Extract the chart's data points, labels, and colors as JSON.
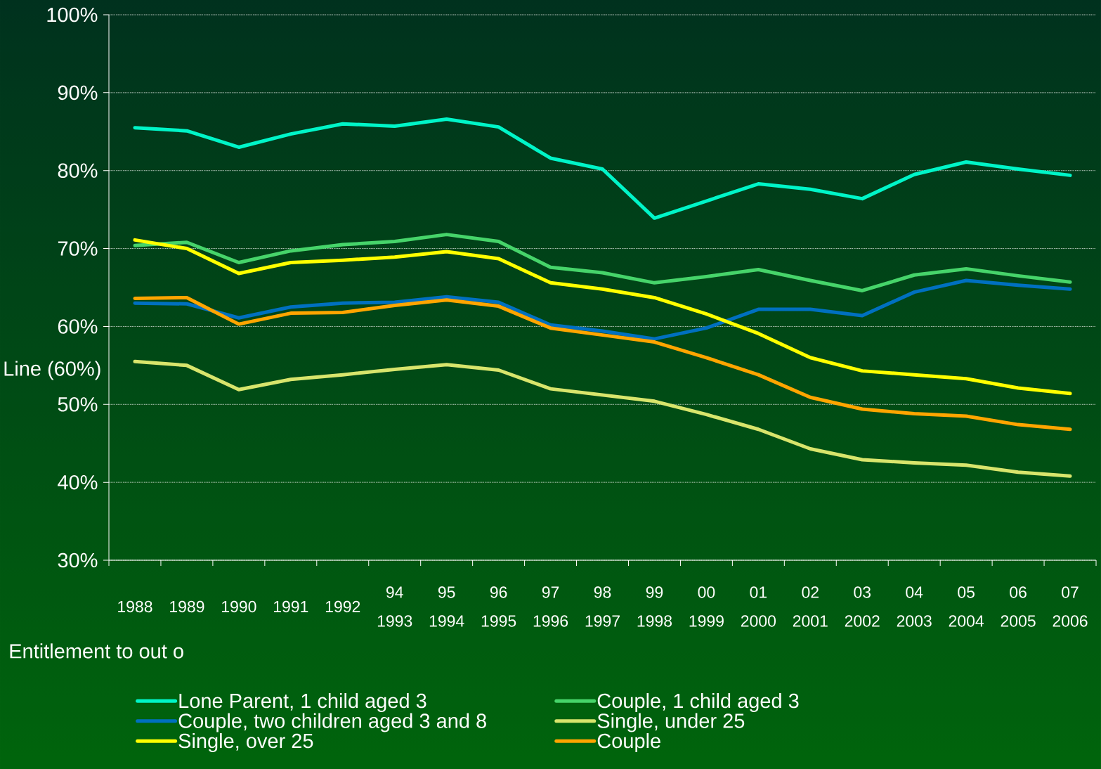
{
  "chart_data": {
    "type": "line",
    "ylabel": "Line (60%)",
    "annotations": [
      "Entitlement to out o"
    ],
    "categories": [
      "1988",
      "1989",
      "1990",
      "1991",
      "1992",
      "94 1993",
      "95 1994",
      "96 1995",
      "97 1996",
      "98 1997",
      "99 1998",
      "00 1999",
      "01 2000",
      "02 2001",
      "03 2002",
      "04 2003",
      "05 2004",
      "06 2005",
      "07 2006"
    ],
    "series": [
      {
        "name": "Lone Parent, 1 child aged 3",
        "color": "#00f5c8",
        "values": [
          85.5,
          85.1,
          83.0,
          84.7,
          86.0,
          85.7,
          86.6,
          85.6,
          81.6,
          80.2,
          73.9,
          76.1,
          78.3,
          77.6,
          76.4,
          79.5,
          81.1,
          80.2,
          79.4
        ]
      },
      {
        "name": "Couple, 1 child aged 3",
        "color": "#46d46a",
        "values": [
          70.4,
          70.8,
          68.2,
          69.7,
          70.5,
          70.9,
          71.8,
          70.9,
          67.6,
          66.9,
          65.6,
          66.4,
          67.3,
          65.9,
          64.6,
          66.6,
          67.4,
          66.5,
          65.7
        ]
      },
      {
        "name": "Couple, two children aged 3 and 8",
        "color": "#0070c0",
        "values": [
          63.0,
          62.9,
          61.1,
          62.5,
          63.0,
          63.1,
          63.8,
          63.1,
          60.2,
          59.4,
          58.4,
          59.8,
          62.2,
          62.2,
          61.4,
          64.4,
          65.9,
          65.3,
          64.8
        ]
      },
      {
        "name": "Single, under 25",
        "color": "#d8e56c",
        "values": [
          55.5,
          55.0,
          51.9,
          53.2,
          53.8,
          54.5,
          55.1,
          54.4,
          52.0,
          51.2,
          50.4,
          48.7,
          46.8,
          44.3,
          42.9,
          42.5,
          42.2,
          41.3,
          40.8
        ]
      },
      {
        "name": "Single, over 25",
        "color": "#ffff00",
        "values": [
          71.1,
          70.0,
          66.8,
          68.2,
          68.5,
          68.9,
          69.6,
          68.7,
          65.6,
          64.8,
          63.7,
          61.6,
          59.1,
          56.0,
          54.3,
          53.8,
          53.3,
          52.1,
          51.4
        ]
      },
      {
        "name": "Couple",
        "color": "#ffa500",
        "values": [
          63.6,
          63.7,
          60.3,
          61.7,
          61.8,
          62.7,
          63.4,
          62.6,
          59.8,
          58.9,
          58.0,
          56.0,
          53.8,
          50.9,
          49.4,
          48.8,
          48.5,
          47.4,
          46.8
        ]
      }
    ],
    "ylim": [
      30,
      100
    ],
    "yticks": [
      {
        "value": 30,
        "label": "30%"
      },
      {
        "value": 40,
        "label": "40%"
      },
      {
        "value": 50,
        "label": "50%"
      },
      {
        "value": 60,
        "label": "60%"
      },
      {
        "value": 70,
        "label": "70%"
      },
      {
        "value": 80,
        "label": "80%"
      },
      {
        "value": 90,
        "label": "90%"
      },
      {
        "value": 100,
        "label": "100%"
      }
    ],
    "grid": "y",
    "legend": "bottom"
  }
}
